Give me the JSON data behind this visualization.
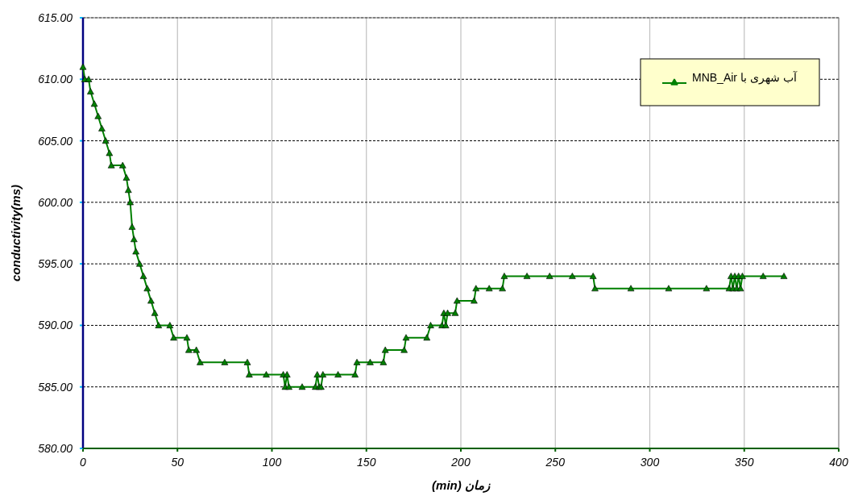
{
  "chart_data": {
    "type": "line",
    "xlabel": "زمان (min)",
    "ylabel": "conductivity(ms)",
    "xlim": [
      0,
      400
    ],
    "xticks": [
      0,
      50,
      100,
      150,
      200,
      250,
      300,
      350,
      400
    ],
    "ylim": [
      580,
      615
    ],
    "yticks": [
      {
        "value": 580,
        "label": "580.00"
      },
      {
        "value": 585,
        "label": "585.00"
      },
      {
        "value": 590,
        "label": "590.00"
      },
      {
        "value": 595,
        "label": "595.00"
      },
      {
        "value": 600,
        "label": "600.00"
      },
      {
        "value": 605,
        "label": "605.00"
      },
      {
        "value": 610,
        "label": "610.00"
      },
      {
        "value": 615,
        "label": "615.00"
      }
    ],
    "grid": true,
    "legend": "top right",
    "marker": "triangle",
    "line_style": "solid",
    "series": [
      {
        "name": "آب شهری با MNB_Air",
        "color": "#008000",
        "x": [
          0,
          1,
          3,
          4,
          6,
          8,
          10,
          12,
          14,
          15,
          21,
          23,
          24,
          25,
          26,
          27,
          28,
          30,
          32,
          34,
          36,
          38,
          40,
          46,
          48,
          55,
          56,
          60,
          62,
          75,
          87,
          88,
          97,
          106,
          107,
          108,
          109,
          116,
          123,
          124,
          125,
          126,
          127,
          135,
          144,
          145,
          152,
          159,
          160,
          170,
          171,
          182,
          184,
          190,
          191,
          192,
          193,
          197,
          198,
          207,
          208,
          215,
          222,
          223,
          235,
          247,
          259,
          270,
          271,
          290,
          310,
          330,
          342,
          343,
          344,
          345,
          346,
          347,
          348,
          349,
          360,
          371
        ],
        "values": [
          611,
          610,
          610,
          609,
          608,
          607,
          606,
          605,
          604,
          603,
          603,
          602,
          601,
          600,
          598,
          597,
          596,
          595,
          594,
          593,
          592,
          591,
          590,
          590,
          589,
          589,
          588,
          588,
          587,
          587,
          587,
          586,
          586,
          586,
          585,
          586,
          585,
          585,
          585,
          586,
          585,
          585,
          586,
          586,
          586,
          587,
          587,
          587,
          588,
          588,
          589,
          589,
          590,
          590,
          591,
          590,
          591,
          591,
          592,
          592,
          593,
          593,
          593,
          594,
          594,
          594,
          594,
          594,
          593,
          593,
          593,
          593,
          593,
          594,
          593,
          594,
          593,
          594,
          593,
          594,
          594,
          594
        ]
      }
    ]
  }
}
